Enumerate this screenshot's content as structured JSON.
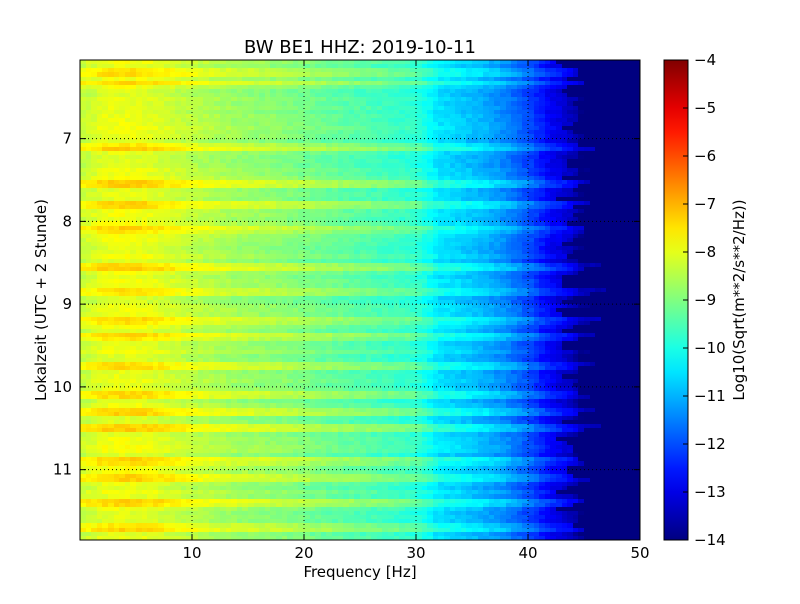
{
  "chart_data": {
    "type": "heatmap",
    "title": "BW BE1 HHZ: 2019-10-11",
    "xlabel": "Frequency [Hz]",
    "ylabel": "Lokalzeit (UTC + 2 Stunde)",
    "colorbar_label": "Log10(Sqrt(m**2/s**2/Hz))",
    "colormap": "jet",
    "xlim": [
      0,
      50
    ],
    "ylim": [
      6.05,
      11.85
    ],
    "y_inverted": true,
    "clim": [
      -14,
      -4
    ],
    "grid": true,
    "x_ticks": [
      10,
      20,
      30,
      40,
      50
    ],
    "x_tick_labels": [
      "10",
      "20",
      "30",
      "40",
      "50"
    ],
    "y_ticks": [
      7,
      8,
      9,
      10,
      11
    ],
    "y_tick_labels": [
      "7",
      "8",
      "9",
      "10",
      "11"
    ],
    "cbar_ticks": [
      -4,
      -5,
      -6,
      -7,
      -8,
      -9,
      -10,
      -11,
      -12,
      -13,
      -14
    ],
    "cbar_tick_labels": [
      "−4",
      "−5",
      "−6",
      "−7",
      "−8",
      "−9",
      "−10",
      "−11",
      "−12",
      "−13",
      "−14"
    ],
    "frequency_profile": {
      "frequency_hz": [
        0,
        1,
        2,
        4,
        6,
        8,
        10,
        14,
        18,
        22,
        26,
        30,
        31,
        32,
        34,
        36,
        38,
        40,
        42,
        44,
        45,
        50
      ],
      "log10_amplitude": [
        -8.3,
        -8.2,
        -8.0,
        -7.9,
        -8.0,
        -8.2,
        -8.4,
        -8.7,
        -8.9,
        -9.2,
        -9.5,
        -9.8,
        -10.1,
        -10.5,
        -10.7,
        -11.0,
        -11.4,
        -12.0,
        -12.8,
        -13.4,
        -14.0,
        -14.0
      ]
    },
    "bright_bands_hours": [
      6.2,
      6.32,
      7.1,
      7.55,
      7.8,
      8.1,
      8.55,
      8.85,
      9.2,
      9.4,
      9.75,
      10.1,
      10.3,
      10.5,
      10.9,
      11.1,
      11.4,
      11.7
    ]
  }
}
